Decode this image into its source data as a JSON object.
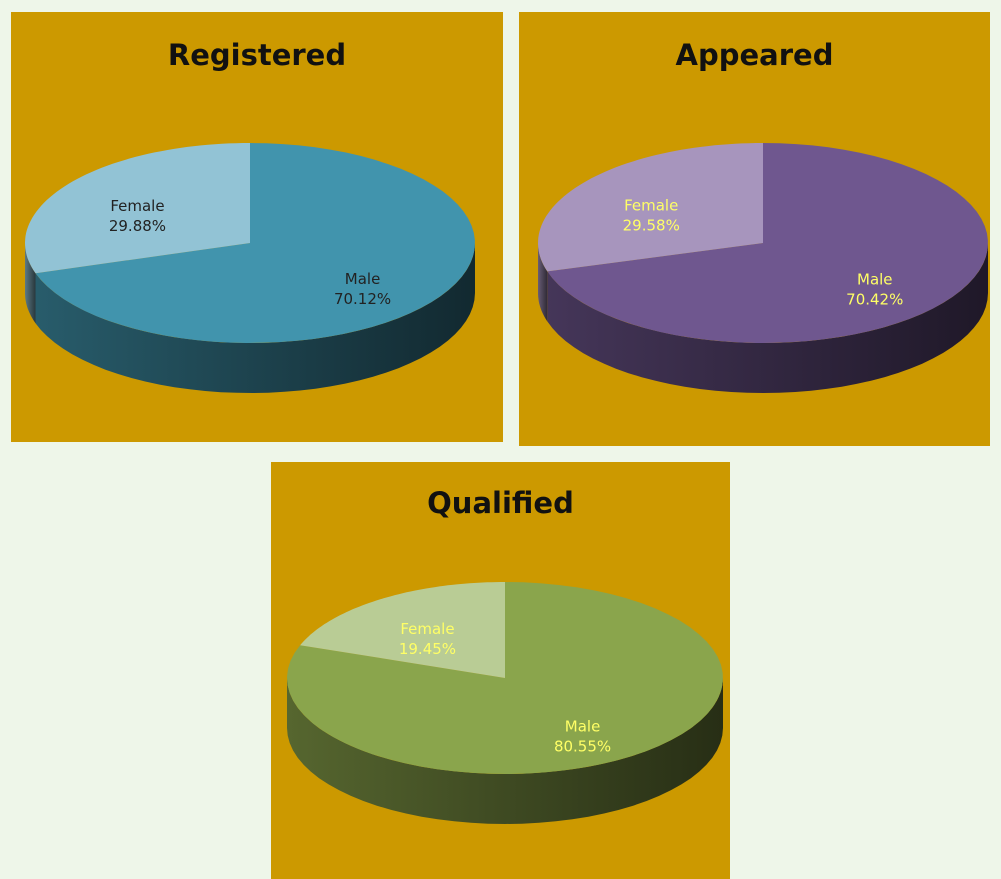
{
  "chart_data": [
    {
      "type": "pie",
      "title": "Registered",
      "categories": [
        "Female",
        "Male"
      ],
      "values": [
        29.88,
        70.12
      ],
      "value_labels": [
        "29.88%",
        "70.12%"
      ],
      "colors": [
        "#92c3d5",
        "#4194ad"
      ],
      "label_color": "#222222"
    },
    {
      "type": "pie",
      "title": "Appeared",
      "categories": [
        "Female",
        "Male"
      ],
      "values": [
        29.58,
        70.42
      ],
      "value_labels": [
        "29.58%",
        "70.42%"
      ],
      "colors": [
        "#a795bd",
        "#6f578f"
      ],
      "label_color": "#ffff66"
    },
    {
      "type": "pie",
      "title": "Qualified",
      "categories": [
        "Female",
        "Male"
      ],
      "values": [
        19.45,
        80.55
      ],
      "value_labels": [
        "19.45%",
        "80.55%"
      ],
      "colors": [
        "#b9cc95",
        "#8aa54c"
      ],
      "label_color": "#ffff66"
    }
  ]
}
